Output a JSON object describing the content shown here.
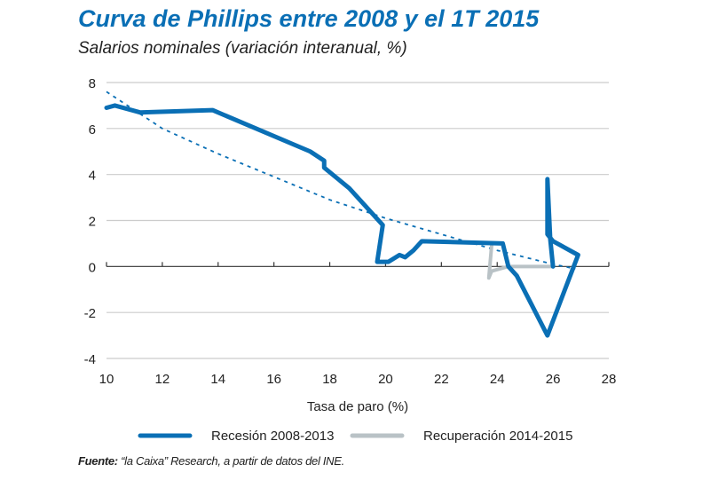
{
  "chart_data": {
    "type": "line",
    "title": "Curva de Phillips entre 2008 y el 1T 2015",
    "subtitle": "Salarios nominales (variación interanual, %)",
    "xlabel": "Tasa de paro (%)",
    "ylabel": "",
    "xlim": [
      10,
      28
    ],
    "ylim": [
      -4,
      8
    ],
    "xticks": [
      10,
      12,
      14,
      16,
      18,
      20,
      22,
      24,
      26,
      28
    ],
    "yticks": [
      -4,
      -2,
      0,
      2,
      4,
      6,
      8
    ],
    "grid": "horizontal",
    "legend_placement": "bottom",
    "series": [
      {
        "name": "Recesión 2008-2013",
        "color": "#0a6fb5",
        "x": [
          10.0,
          10.3,
          11.2,
          13.8,
          17.3,
          17.8,
          17.8,
          18.7,
          19.9,
          19.7,
          20.1,
          20.5,
          20.7,
          21.0,
          21.3,
          24.2,
          24.4,
          24.7,
          25.8,
          26.9,
          26.0,
          25.8,
          25.8,
          25.9,
          26.0
        ],
        "y": [
          6.9,
          7.0,
          6.7,
          6.8,
          5.0,
          4.6,
          4.3,
          3.4,
          1.8,
          0.2,
          0.2,
          0.5,
          0.4,
          0.7,
          1.1,
          1.0,
          0.0,
          -0.4,
          -3.0,
          0.5,
          1.1,
          1.4,
          3.8,
          1.2,
          0.0
        ]
      },
      {
        "name": "Recuperación 2014-2015",
        "color": "#b9c2c6",
        "x": [
          26.0,
          24.4,
          23.8,
          23.7,
          23.8
        ],
        "y": [
          0.0,
          0.0,
          -0.2,
          -0.5,
          0.9
        ]
      },
      {
        "name": "",
        "style": "dotted",
        "color": "#0a6fb5",
        "x": [
          10,
          12,
          14,
          16,
          18,
          20,
          22,
          24,
          26,
          26.8
        ],
        "y": [
          7.6,
          6.0,
          4.9,
          3.9,
          2.9,
          2.1,
          1.4,
          0.7,
          0.1,
          -0.1
        ]
      }
    ]
  },
  "source": {
    "label": "Fuente:",
    "text": " “la Caixa” Research, a partir de datos del INE."
  }
}
